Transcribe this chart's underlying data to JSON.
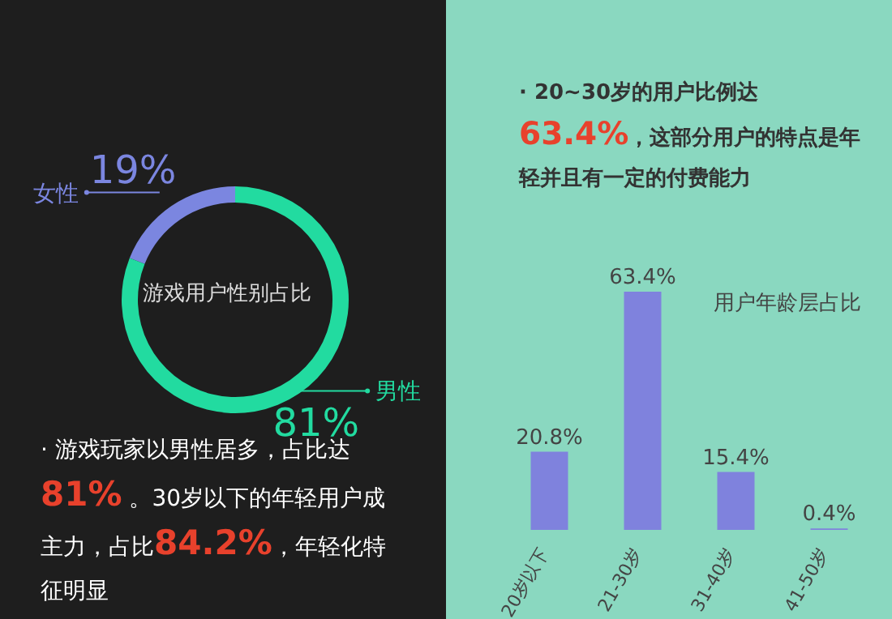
{
  "chart_data": [
    {
      "type": "donut",
      "title": "游戏用户性别占比",
      "categories": [
        "女性",
        "男性"
      ],
      "values": [
        19,
        81
      ],
      "colors": [
        "#7b86e0",
        "#22dba0"
      ],
      "value_labels": [
        "19%",
        "81%"
      ],
      "annotations": [
        "· 游戏玩家以男性居多，占比达 81% 。30岁以下的年轻用户成主力，占比84.2%，年轻化特征明显"
      ]
    },
    {
      "type": "bar",
      "title": "用户年龄层占比",
      "categories": [
        "20岁以下",
        "21-30岁",
        "31-40岁",
        "41-50岁"
      ],
      "values": [
        20.8,
        63.4,
        15.4,
        0.4
      ],
      "color": "#7f82dd",
      "value_labels": [
        "20.8%",
        "63.4%",
        "15.4%",
        "0.4%"
      ],
      "annotations": [
        "· 20~30岁的用户比例达 63.4%，这部分用户的特点是年轻并且有一定的付费能力"
      ]
    }
  ]
}
